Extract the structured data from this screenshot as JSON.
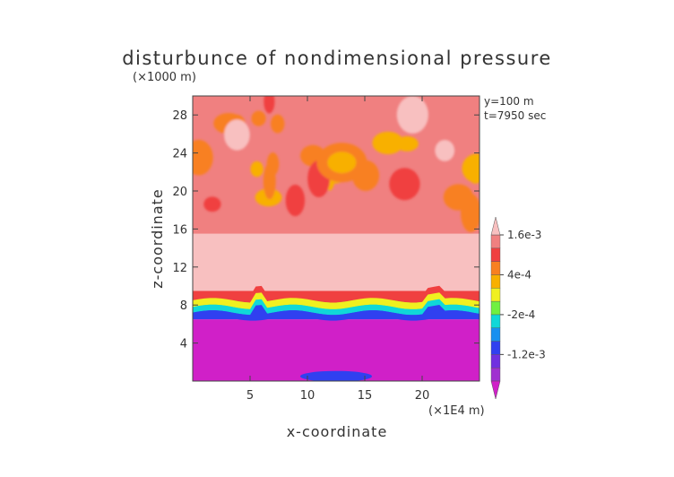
{
  "chart_data": {
    "type": "heatmap",
    "title": "disturbunce of nondimensional pressure",
    "xlabel": "x-coordinate",
    "ylabel": "z-coordinate",
    "x_unit": "(×1E4 m)",
    "y_unit": "(×1000 m)",
    "annotations": [
      "y=100 m",
      "t=7950 sec"
    ],
    "xlim": [
      0,
      25
    ],
    "ylim": [
      0,
      30
    ],
    "x_ticks": [
      5,
      10,
      15,
      20
    ],
    "x_tick_labels": [
      "5",
      "10",
      "15",
      "20"
    ],
    "y_ticks": [
      4,
      8,
      12,
      16,
      20,
      24,
      28
    ],
    "y_tick_labels": [
      "4",
      "8",
      "12",
      "16",
      "20",
      "24",
      "28"
    ],
    "colorbar": {
      "levels": [
        "< -1.6e-3",
        "-1.6e-3",
        "-1.2e-3",
        "-8e-4",
        "-4e-4",
        "-2e-4",
        "0",
        "2e-4",
        "4e-4",
        "8e-4",
        "1.2e-3",
        "1.6e-3",
        "> 2e-3"
      ],
      "colors": [
        "#d020c8",
        "#a030d0",
        "#7030e0",
        "#3040f0",
        "#1890f0",
        "#10d8d8",
        "#70f040",
        "#f0f020",
        "#f8b000",
        "#f88020",
        "#f04040",
        "#f08080",
        "#f8c0c0"
      ],
      "tick_labels": [
        "1.6e-3",
        "4e-4",
        "-2e-4",
        "-1.2e-3"
      ],
      "tick_level_index": [
        11,
        8,
        5,
        2
      ],
      "extend": "both"
    },
    "field_description": "upper layer (z>15) disturbed red/orange cells; flat pink zone 12-15; sharp gradient band near z=8-9; magenta layer below z=7",
    "regions": [
      {
        "zmin": 0,
        "zmax": 6.5,
        "value_level": 0
      },
      {
        "zmin": 6.5,
        "zmax": 7.5,
        "value_level": 3
      },
      {
        "zmin": 7.5,
        "zmax": 8.5,
        "value_level": 6
      },
      {
        "zmin": 8.5,
        "zmax": 9.5,
        "value_level": 10
      },
      {
        "zmin": 9.5,
        "zmax": 15.5,
        "value_level": 12
      },
      {
        "zmin": 15.5,
        "zmax": 30,
        "value_level": 11
      }
    ]
  }
}
